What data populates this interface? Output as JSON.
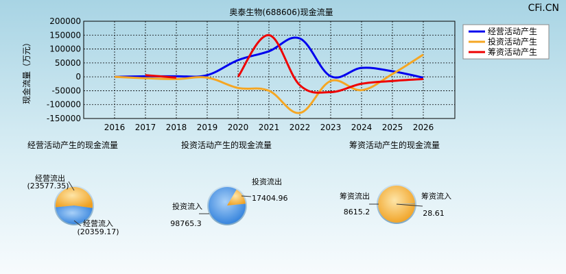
{
  "watermark": "CFi.CN",
  "chart_data": [
    {
      "type": "line",
      "title": "奥泰生物(688606)现金流量",
      "ylabel": "现金流量（万元）",
      "categories": [
        "2016",
        "2017",
        "2018",
        "2019",
        "2020",
        "2021",
        "2022",
        "2023",
        "2024",
        "2025",
        "2026"
      ],
      "ylim": [
        -150000,
        200000
      ],
      "yticks": [
        "200000",
        "150000",
        "100000",
        "50000",
        "0",
        "-50000",
        "-100000",
        "-150000"
      ],
      "legend_position": "top-right",
      "grid": true,
      "series": [
        {
          "name": "经营活动产生",
          "color": "#0000ee",
          "values": [
            0,
            2000,
            2000,
            6000,
            60000,
            92000,
            138000,
            2000,
            32000,
            20000,
            -3000
          ]
        },
        {
          "name": "投资活动产生",
          "color": "#f5a623",
          "values": [
            0,
            -5000,
            -8000,
            -3000,
            -40000,
            -50000,
            -130000,
            -15000,
            -48000,
            10000,
            80000
          ]
        },
        {
          "name": "筹资活动产生",
          "color": "#ee0000",
          "x_start": 4,
          "values": [
            null,
            6000,
            -3000,
            null,
            0,
            150000,
            -30000,
            -55000,
            -25000,
            -15000,
            -8000
          ]
        }
      ]
    },
    {
      "type": "pie",
      "title": "经营活动产生的现金流量",
      "slices": [
        {
          "label": "经营流出",
          "value": "(23577.35)",
          "num": 23577.35
        },
        {
          "label": "经营流入",
          "value": "(20359.17)",
          "num": 20359.17
        }
      ]
    },
    {
      "type": "pie",
      "title": "投资活动产生的现金流量",
      "slices": [
        {
          "label": "投资流出",
          "value": "17404.96",
          "num": 17404.96
        },
        {
          "label": "投资流入",
          "value": "98765.3",
          "num": 98765.3
        }
      ]
    },
    {
      "type": "pie",
      "title": "筹资活动产生的现金流量",
      "slices": [
        {
          "label": "筹资流出",
          "value": "8615.2",
          "num": 8615.2
        },
        {
          "label": "筹资流入",
          "value": "28.61",
          "num": 28.61
        }
      ]
    }
  ]
}
